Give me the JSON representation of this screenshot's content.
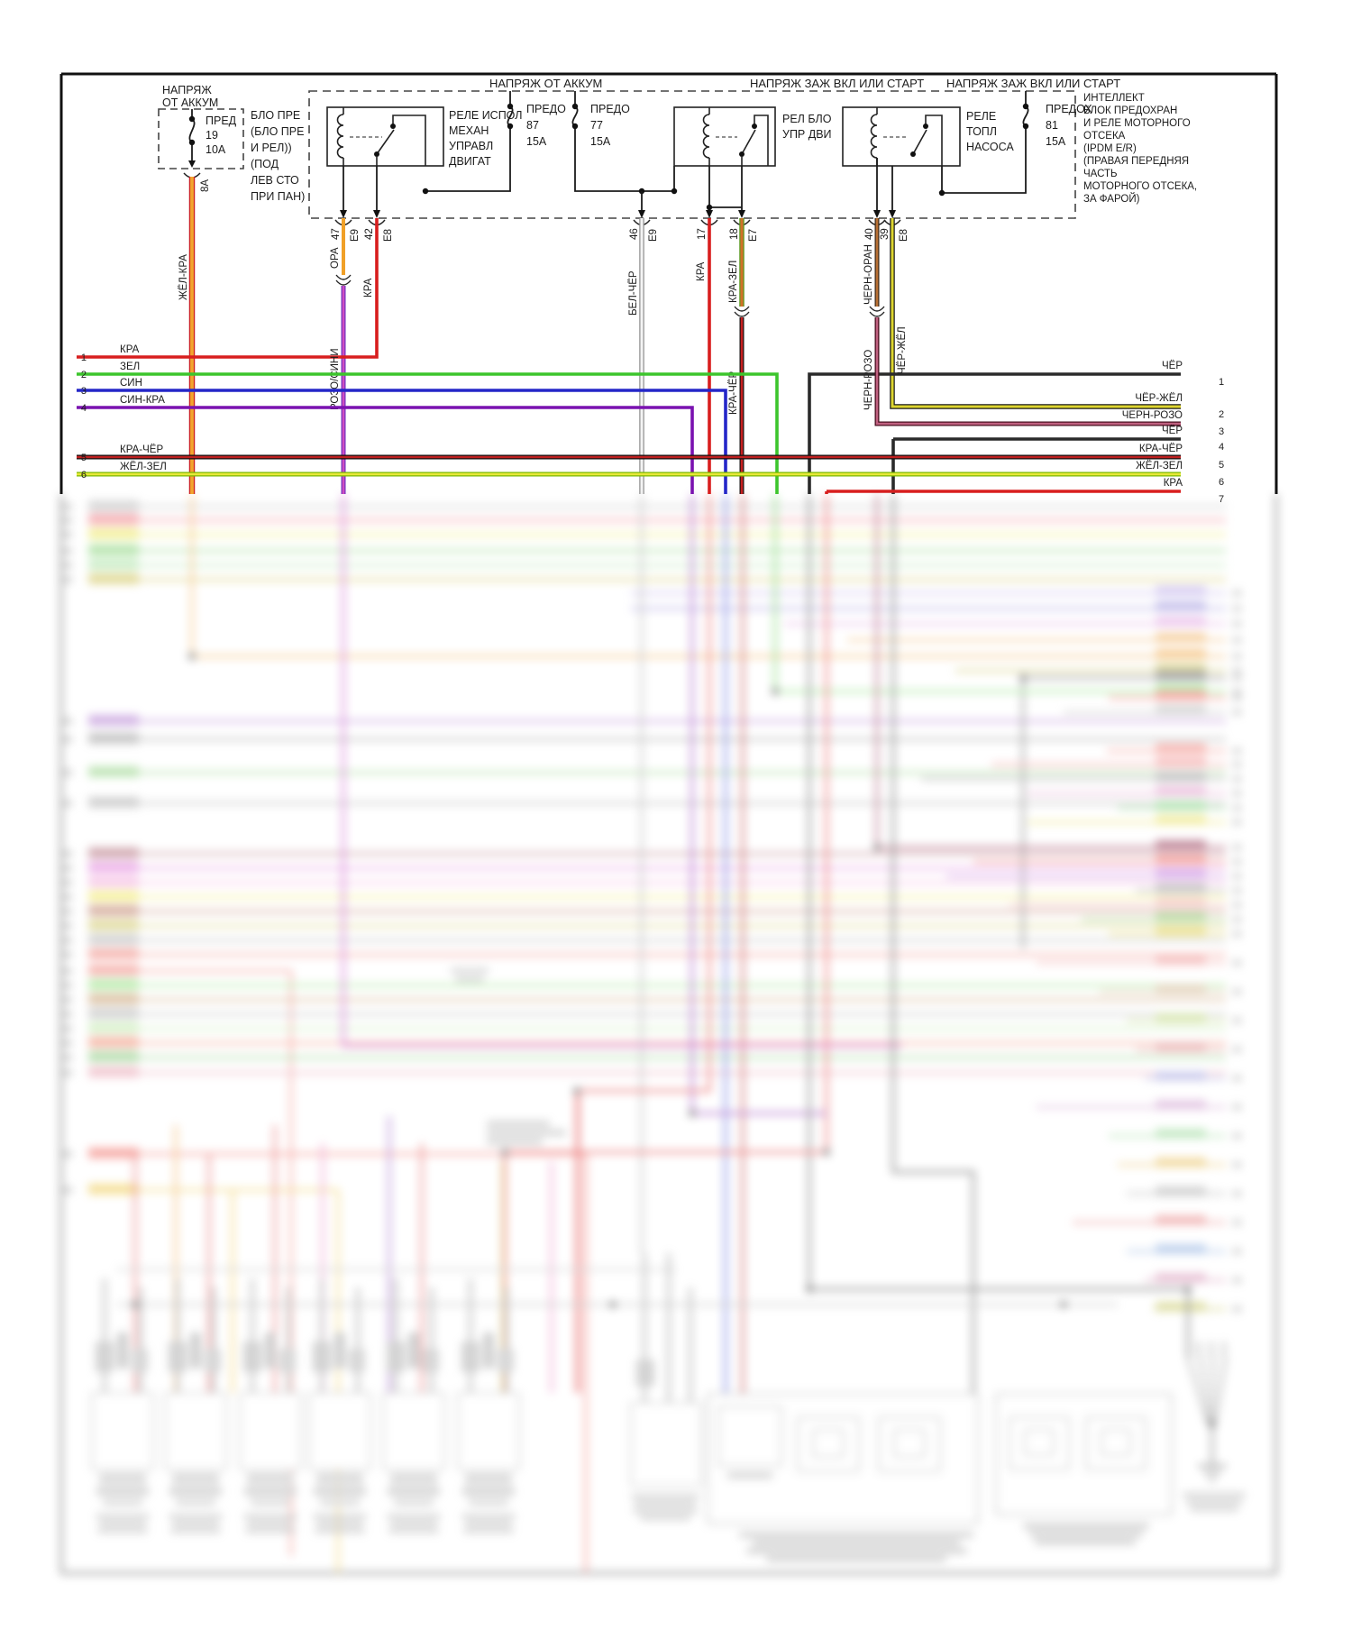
{
  "diagram": {
    "buses": {
      "b1": "НАПРЯЖ ОТ АККУМ",
      "b2": "НАПРЯЖ ЗАЖ ВКЛ ИЛИ СТАРТ",
      "b3": "НАПРЯЖ ЗАЖ ВКЛ ИЛИ СТАРТ"
    },
    "battery_fuse": {
      "title1": "НАПРЯЖ",
      "title2": "ОТ АККУМ",
      "name": "ПРЕД",
      "number": "19",
      "amps": "10А",
      "pin": "8А",
      "wire": "ЖЁЛ-КРА",
      "note": [
        "БЛО ПРЕ",
        "(БЛО ПРЕ",
        "И РЕЛ))",
        "(ПОД",
        "ЛЕВ СТО",
        "ПРИ ПАН)"
      ]
    },
    "relay1": {
      "label": [
        "РЕЛЕ ИСПОЛ",
        "МЕХАН",
        "УПРАВЛ",
        "ДВИГАТ"
      ]
    },
    "relay2": {
      "label": [
        "РЕЛ БЛО",
        "УПР ДВИ"
      ]
    },
    "relay3": {
      "label": [
        "РЕЛЕ",
        "ТОПЛ",
        "НАСОСА"
      ]
    },
    "fuse87": {
      "name": "ПРЕДО",
      "number": "87",
      "amps": "15А"
    },
    "fuse77": {
      "name": "ПРЕДО",
      "number": "77",
      "amps": "15А"
    },
    "fuse81": {
      "name": "ПРЕДОХ",
      "number": "81",
      "amps": "15А"
    },
    "ipdm_note": [
      "ИНТЕЛЛЕКТ",
      "БЛОК ПРЕДОХРАН",
      "И РЕЛЕ МОТОРНОГО",
      "ОТСЕКА",
      "(IPDM E/R)",
      "(ПРАВАЯ ПЕРЕДНЯЯ",
      "ЧАСТЬ",
      "МОТОРНОГО ОТСЕКА,",
      "ЗА ФАРОЙ)"
    ],
    "drops": {
      "d47": {
        "pin": "47",
        "conn": "E9",
        "wire": "ОРА",
        "wire2": "РОЗО/СИНИ"
      },
      "d42": {
        "pin": "42",
        "conn": "E8",
        "wire": "КРА"
      },
      "d46": {
        "pin": "46",
        "conn": "E9",
        "wire": "БЕЛ-ЧЁР"
      },
      "d17": {
        "pin": "17",
        "wire": "КРА"
      },
      "d18": {
        "pin": "18",
        "conn": "E7",
        "wire": "КРА-ЗЕЛ",
        "wire2": "КРА-ЧЁР"
      },
      "d40": {
        "pin": "40",
        "wire": "ЧЕРН-ОРАН",
        "wire2": "ЧЕРН-РОЗО"
      },
      "d39": {
        "pin": "39",
        "conn": "E8",
        "wire": "ЧЁР-ЖЁЛ"
      }
    },
    "left_rows": [
      {
        "n": "1",
        "label": "КРА"
      },
      {
        "n": "2",
        "label": "ЗЕЛ"
      },
      {
        "n": "3",
        "label": "СИН"
      },
      {
        "n": "4",
        "label": "СИН-КРА"
      },
      {
        "n": "5",
        "label": "КРА-ЧЁР"
      },
      {
        "n": "6",
        "label": "ЖЁЛ-ЗЕЛ"
      }
    ],
    "right_rows": [
      {
        "n": "1",
        "label": "ЧЁР"
      },
      {
        "n": "2",
        "label": "ЧЁР-ЖЁЛ"
      },
      {
        "n": "3",
        "label": "ЧЕРН-РОЗО"
      },
      {
        "n": "4",
        "label": "ЧЁР"
      },
      {
        "n": "5",
        "label": "КРА-ЧЁР"
      },
      {
        "n": "6",
        "label": "ЖЁЛ-ЗЕЛ"
      },
      {
        "n": "7",
        "label": "КРА"
      }
    ],
    "wire_colors": {
      "red": "#d81e1e",
      "green": "#3cc52c",
      "blue": "#2426c8",
      "violet": "#7a12b0",
      "magenta": "#b030b0",
      "orange": "#f0a028",
      "black": "#2a2a2a",
      "dark_red": "#b01818",
      "yellow_green": "#cfe02e",
      "yellow_black": "#ddd530",
      "maroon": "#93314f",
      "brown": "#8a5a28",
      "white_black": "#f4f4f4"
    }
  }
}
